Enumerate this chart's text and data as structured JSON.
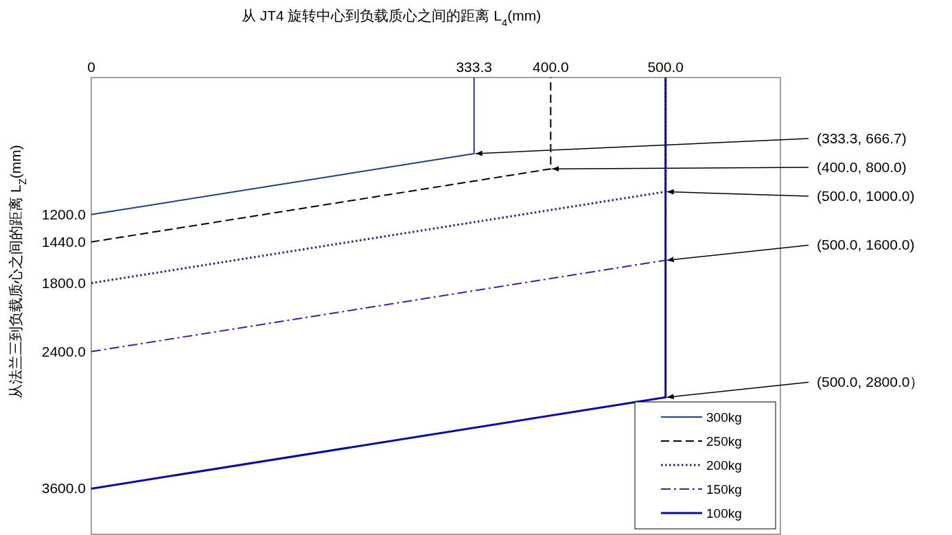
{
  "chart_data": {
    "type": "line",
    "xlabel": "从 JT4 旋转中心到负载质心之间的距离 L$_{4}$(mm)",
    "ylabel": "从法兰三到负载质心之间的距离 L$_{Z}$(mm)",
    "xlim": [
      0,
      600
    ],
    "ylim": [
      4000,
      0
    ],
    "xticks": [
      0,
      333.3,
      {
        "value": 400,
        "label": "400.0"
      },
      {
        "value": 500,
        "label": "500.0"
      }
    ],
    "yticks": [
      {
        "value": 1200,
        "label": "1200.0"
      },
      {
        "value": 1440,
        "label": "1440.0"
      },
      {
        "value": 1800,
        "label": "1800.0"
      },
      {
        "value": 2400,
        "label": "2400.0"
      },
      {
        "value": 3600,
        "label": "3600.0"
      }
    ],
    "series": [
      {
        "name": "300kg",
        "color": "#203f80",
        "line_style": "solid",
        "x": [
          0,
          333.3,
          333.3
        ],
        "values": [
          1200,
          666.7,
          0
        ]
      },
      {
        "name": "250kg",
        "color": "#000000",
        "line_style": "dashed",
        "x": [
          0,
          400,
          400
        ],
        "values": [
          1440,
          800,
          0
        ]
      },
      {
        "name": "200kg",
        "color": "#1a2f6e",
        "line_style": "dotted",
        "x": [
          0,
          500,
          500
        ],
        "values": [
          1800,
          1000,
          0
        ]
      },
      {
        "name": "150kg",
        "color": "#2a2aa0",
        "line_style": "dashdot",
        "x": [
          0,
          500,
          500
        ],
        "values": [
          2400,
          1600,
          0
        ]
      },
      {
        "name": "100kg",
        "color": "#0c0c99",
        "line_style": "solid",
        "x": [
          0,
          500,
          500
        ],
        "values": [
          3600,
          2800,
          0
        ]
      }
    ],
    "annotations": [
      {
        "text": "(333.3, 666.7)",
        "x": 333.3,
        "y": 666.7
      },
      {
        "text": "(400.0, 800.0)",
        "x": 400,
        "y": 800
      },
      {
        "text": "(500.0, 1000.0)",
        "x": 500,
        "y": 1000
      },
      {
        "text": "(500.0, 1600.0)",
        "x": 500,
        "y": 1600
      },
      {
        "text": "(500.0, 2800.0）",
        "x": 500,
        "y": 2800
      }
    ],
    "legend": "bottom right",
    "grid": false
  }
}
